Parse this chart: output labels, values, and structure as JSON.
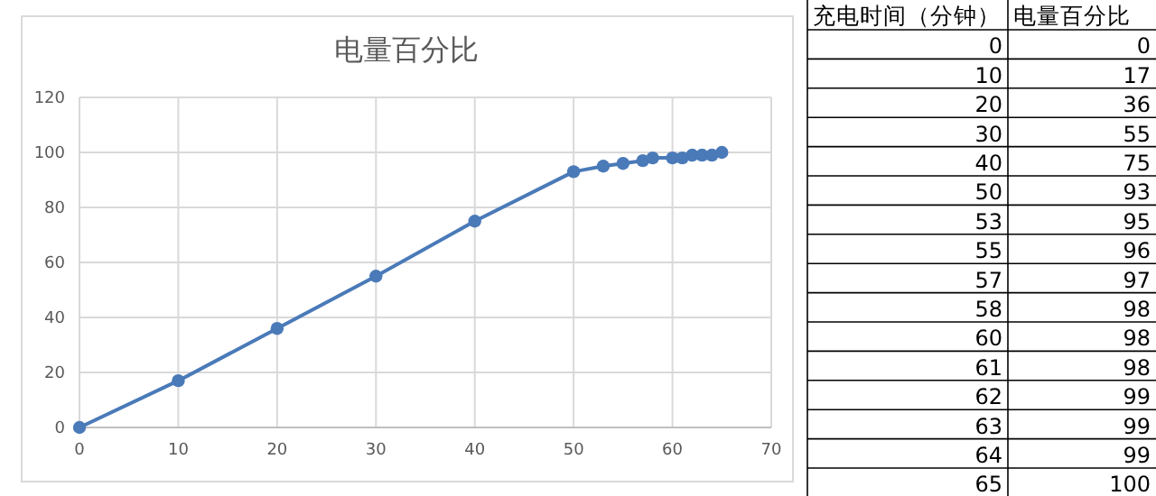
{
  "chart_data": [
    {
      "type": "line",
      "title": "电量百分比",
      "x": [
        0,
        10,
        20,
        30,
        40,
        50,
        53,
        55,
        57,
        58,
        60,
        61,
        62,
        63,
        64,
        65
      ],
      "series": [
        {
          "color": "#4a7ab8",
          "values": [
            0,
            17,
            36,
            55,
            75,
            93,
            95,
            96,
            97,
            98,
            98,
            98,
            99,
            99,
            99,
            100
          ]
        }
      ],
      "xlim": [
        0,
        70
      ],
      "xticks": [
        0,
        10,
        20,
        30,
        40,
        50,
        60,
        70
      ],
      "ylim": [
        0,
        120
      ],
      "yticks": [
        0,
        20,
        40,
        60,
        80,
        100,
        120
      ],
      "grid": true,
      "marker": "circle",
      "line_style": "solid"
    },
    {
      "type": "other",
      "annotations": [
        "充电时间（分钟）",
        "电量百分比",
        "0",
        "0",
        "10",
        "17",
        "20",
        "36",
        "30",
        "55",
        "40",
        "75",
        "50",
        "93",
        "53",
        "95",
        "55",
        "96",
        "57",
        "97",
        "58",
        "98",
        "60",
        "98",
        "61",
        "98",
        "62",
        "99",
        "63",
        "99",
        "64",
        "99",
        "65",
        "100"
      ]
    }
  ]
}
